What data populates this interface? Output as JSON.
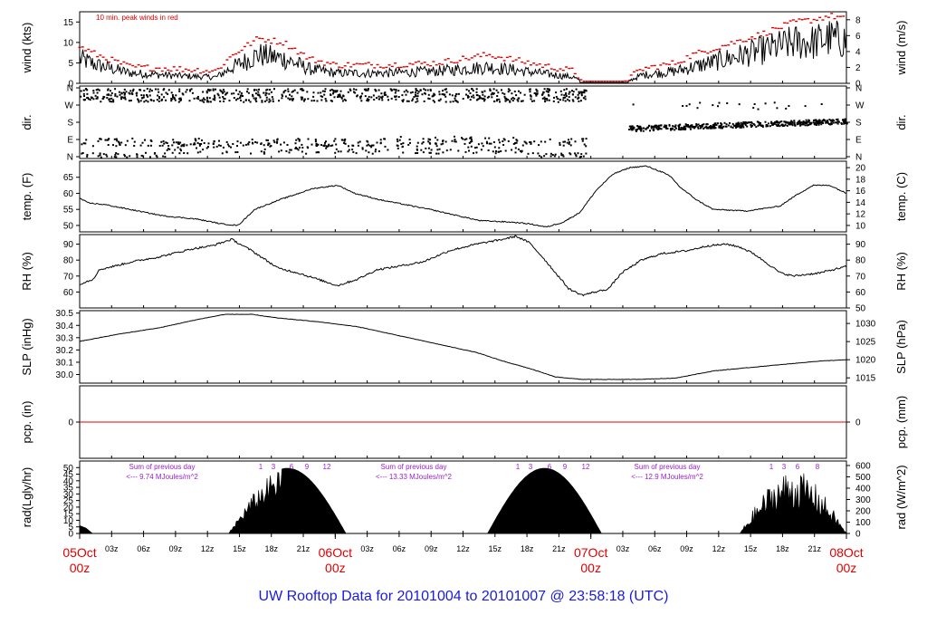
{
  "footer_title": "UW Rooftop Data for 20101004  to  20101007 @ 23:58:18  (UTC)",
  "colors": {
    "main": "#000000",
    "red": "#e00000",
    "purple": "#9a1fd0",
    "blue": "#1a1ae0"
  },
  "chart_data": [
    {
      "type": "line",
      "id": "wind",
      "ylabel_left": "wind (kts)",
      "ylabel_right": "wind (m/s)",
      "ylim": [
        0,
        17.5
      ],
      "yticks_left": [
        0,
        5,
        10,
        15
      ],
      "yticks_right": [
        0,
        2,
        4,
        6,
        8
      ],
      "annotation": "10 min. peak winds in red",
      "series": [
        {
          "name": "wind",
          "keypoints": [
            [
              0,
              6
            ],
            [
              2,
              4.5
            ],
            [
              6,
              2.5
            ],
            [
              12,
              1.8
            ],
            [
              16,
              1.5
            ],
            [
              18,
              4
            ],
            [
              21,
              7
            ],
            [
              24,
              6
            ],
            [
              27,
              3.5
            ],
            [
              30,
              2.5
            ],
            [
              36,
              2.5
            ],
            [
              42,
              3
            ],
            [
              48,
              4
            ],
            [
              54,
              2.5
            ],
            [
              58,
              1.5
            ],
            [
              59,
              0.2
            ],
            [
              64,
              0.2
            ],
            [
              66,
              2
            ],
            [
              70,
              3
            ],
            [
              72,
              4
            ],
            [
              76,
              6
            ],
            [
              80,
              8
            ],
            [
              82,
              9
            ],
            [
              84,
              10
            ],
            [
              86,
              10
            ],
            [
              88,
              11
            ],
            [
              90,
              10.5
            ]
          ]
        },
        {
          "name": "10 min. peak winds",
          "keypoints": [
            [
              0,
              9
            ],
            [
              2,
              7
            ],
            [
              6,
              4
            ],
            [
              12,
              3.5
            ],
            [
              16,
              3
            ],
            [
              18,
              7
            ],
            [
              21,
              11
            ],
            [
              24,
              10
            ],
            [
              27,
              6
            ],
            [
              30,
              4.5
            ],
            [
              36,
              4.5
            ],
            [
              42,
              5
            ],
            [
              48,
              7
            ],
            [
              54,
              4.5
            ],
            [
              58,
              3
            ],
            [
              59,
              0.5
            ],
            [
              64,
              0.5
            ],
            [
              66,
              3.5
            ],
            [
              70,
              5
            ],
            [
              72,
              7
            ],
            [
              76,
              9.5
            ],
            [
              80,
              12
            ],
            [
              82,
              13.5
            ],
            [
              84,
              15
            ],
            [
              86,
              15.5
            ],
            [
              88,
              16.5
            ],
            [
              90,
              16
            ]
          ]
        }
      ]
    },
    {
      "type": "scatter",
      "id": "dir",
      "ylabel_left": "dir.",
      "ylabel_right": "dir.",
      "yticks_labels": [
        "N",
        "E",
        "S",
        "W",
        "N"
      ],
      "ylim": [
        0,
        360
      ]
    },
    {
      "type": "line",
      "id": "temp",
      "ylabel_left": "temp. (F)",
      "ylabel_right": "temp. (C)",
      "ylim": [
        48,
        70
      ],
      "yticks_left": [
        50,
        55,
        60,
        65
      ],
      "yticks_right": [
        10,
        12,
        14,
        16,
        18,
        20
      ],
      "series": [
        {
          "name": "temperature",
          "keypoints": [
            [
              0,
              58.5
            ],
            [
              1,
              57
            ],
            [
              3,
              56.5
            ],
            [
              5,
              55.5
            ],
            [
              10,
              53
            ],
            [
              14,
              52
            ],
            [
              17,
              50.5
            ],
            [
              19,
              50
            ],
            [
              21,
              55
            ],
            [
              24,
              58
            ],
            [
              28,
              61.5
            ],
            [
              31,
              62.5
            ],
            [
              33,
              60
            ],
            [
              36,
              58
            ],
            [
              42,
              55
            ],
            [
              48,
              51.5
            ],
            [
              52,
              51
            ],
            [
              54,
              50.5
            ],
            [
              56,
              49.5
            ],
            [
              58,
              51
            ],
            [
              60,
              54
            ],
            [
              62,
              61
            ],
            [
              64,
              66
            ],
            [
              66,
              68
            ],
            [
              68,
              68.5
            ],
            [
              70,
              66.5
            ],
            [
              71,
              65
            ],
            [
              72,
              62
            ],
            [
              74,
              58
            ],
            [
              76,
              55
            ],
            [
              80,
              54.5
            ],
            [
              84,
              56
            ],
            [
              86,
              59.5
            ],
            [
              88,
              62.5
            ],
            [
              90,
              62.5
            ],
            [
              92,
              60
            ]
          ]
        }
      ]
    },
    {
      "type": "line",
      "id": "rh",
      "ylabel_left": "RH (%)",
      "ylabel_right": "RH (%)",
      "ylim": [
        50,
        96
      ],
      "yticks_left": [
        60,
        70,
        80,
        90
      ],
      "yticks_right": [
        50,
        60,
        70,
        80,
        90
      ],
      "series": [
        {
          "name": "relative humidity",
          "keypoints": [
            [
              0,
              65
            ],
            [
              2,
              68
            ],
            [
              3,
              74
            ],
            [
              5,
              76
            ],
            [
              8,
              79
            ],
            [
              12,
              82
            ],
            [
              17,
              87
            ],
            [
              20,
              89
            ],
            [
              23,
              93
            ],
            [
              26,
              86
            ],
            [
              30,
              75
            ],
            [
              33,
              72
            ],
            [
              36,
              68
            ],
            [
              39,
              64
            ],
            [
              42,
              68
            ],
            [
              45,
              74
            ],
            [
              48,
              76
            ],
            [
              52,
              79
            ],
            [
              56,
              86
            ],
            [
              60,
              90
            ],
            [
              64,
              93
            ],
            [
              66,
              95
            ],
            [
              68,
              91
            ],
            [
              70,
              82
            ],
            [
              72,
              72
            ],
            [
              74,
              62
            ],
            [
              76,
              58
            ],
            [
              78,
              60
            ],
            [
              80,
              62
            ],
            [
              82,
              72
            ],
            [
              85,
              80
            ],
            [
              88,
              84
            ],
            [
              92,
              86
            ],
            [
              95,
              89
            ],
            [
              98,
              90
            ],
            [
              100,
              88
            ],
            [
              102,
              84
            ],
            [
              104,
              78
            ],
            [
              106,
              72
            ],
            [
              108,
              70
            ],
            [
              112,
              72
            ],
            [
              116,
              76
            ]
          ]
        }
      ]
    },
    {
      "type": "line",
      "id": "slp",
      "ylabel_left": "SLP (inHg)",
      "ylabel_right": "SLP (hPa)",
      "ylim": [
        29.93,
        30.52
      ],
      "yticks_left": [
        30.0,
        30.1,
        30.2,
        30.3,
        30.4,
        30.5
      ],
      "yticks_labels_left": [
        "30.0",
        "30.1",
        "30.2",
        "30.3",
        "30.4",
        "30.5"
      ],
      "yticks_right": [
        1015,
        1020,
        1025,
        1030
      ],
      "series": [
        {
          "name": "sea level pressure",
          "keypoints": [
            [
              0,
              30.27
            ],
            [
              6,
              30.33
            ],
            [
              12,
              30.38
            ],
            [
              18,
              30.45
            ],
            [
              22,
              30.49
            ],
            [
              26,
              30.49
            ],
            [
              30,
              30.46
            ],
            [
              36,
              30.43
            ],
            [
              42,
              30.39
            ],
            [
              48,
              30.32
            ],
            [
              54,
              30.25
            ],
            [
              60,
              30.18
            ],
            [
              64,
              30.11
            ],
            [
              68,
              30.05
            ],
            [
              72,
              29.98
            ],
            [
              76,
              29.96
            ],
            [
              84,
              29.96
            ],
            [
              90,
              29.97
            ],
            [
              96,
              30.03
            ],
            [
              104,
              30.07
            ],
            [
              112,
              30.11
            ],
            [
              116,
              30.12
            ]
          ]
        }
      ]
    },
    {
      "type": "line",
      "id": "pcp",
      "ylabel_left": "pcp. (in)",
      "ylabel_right": "pcp. (mm)",
      "ylim": [
        -1,
        1
      ],
      "yticks_left": [
        0
      ],
      "yticks_right": [
        0
      ],
      "series": [
        {
          "name": "precipitation",
          "keypoints": [
            [
              0,
              0
            ],
            [
              72,
              0
            ]
          ]
        }
      ]
    },
    {
      "type": "area",
      "id": "rad",
      "ylabel_left": "rad(Lgly/hr)",
      "ylabel_right": "rad (W/m^2)",
      "ylim": [
        0,
        55
      ],
      "yticks_left": [
        0,
        5,
        10,
        15,
        20,
        25,
        30,
        35,
        40,
        45,
        50
      ],
      "yticks_right": [
        0,
        100,
        200,
        300,
        400,
        500,
        600
      ],
      "day_sums": [
        {
          "text1": "Sum of previous day",
          "text2": "<--- 9.74 MJoules/m^2"
        },
        {
          "text1": "Sum of previous day",
          "text2": "<--- 13.33 MJoules/m^2"
        },
        {
          "text1": "Sum of previous day",
          "text2": "<--- 12.9 MJoules/m^2"
        }
      ],
      "hour_marks": [
        [
          "1",
          "3",
          "6",
          "9",
          "12"
        ],
        [
          "1",
          "3",
          "6",
          "9",
          "12"
        ],
        [
          "1",
          "3",
          "6",
          "8"
        ]
      ],
      "peaks": [
        49.5,
        49.5,
        48
      ]
    }
  ],
  "x_axis": {
    "hours_total": 72,
    "tick_labels": [
      "03z",
      "06z",
      "09z",
      "12z",
      "15z",
      "18z",
      "21z",
      "",
      "03z",
      "06z",
      "09z",
      "12z",
      "15z",
      "18z",
      "21z",
      "",
      "03z",
      "06z",
      "09z",
      "12z",
      "15z",
      "18z",
      "21z"
    ],
    "day_labels": [
      {
        "day": "05Oct",
        "time": "00z"
      },
      {
        "day": "06Oct",
        "time": "00z"
      },
      {
        "day": "07Oct",
        "time": "00z"
      },
      {
        "day": "08Oct",
        "time": "00z"
      }
    ]
  }
}
